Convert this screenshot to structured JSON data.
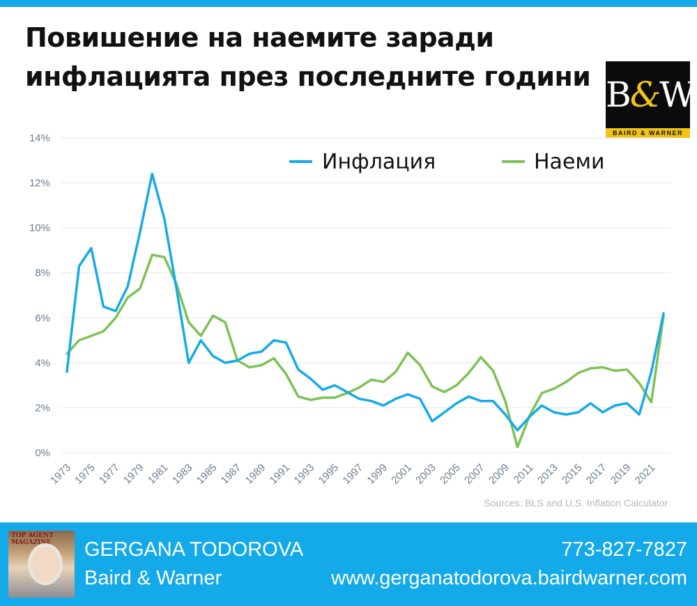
{
  "title_line1": "Повишение на наемите заради",
  "title_line2": "инфлацията през последните години",
  "logo": {
    "mark": "B&W",
    "band": "BAIRD & WARNER"
  },
  "footer": {
    "name": "GERGANA TODOROVA",
    "company": "Baird & Warner",
    "phone": "773-827-7827",
    "website": "www.gerganatodorova.bairdwarner.com",
    "photo_badge": "TOP AGENT MAGAZINE"
  },
  "colors": {
    "accent": "#14a9e8",
    "inflation": "#16aae8",
    "rents": "#7dc255",
    "logo_yellow": "#f2c417"
  },
  "chart_data": {
    "type": "line",
    "x": [
      1973,
      1974,
      1975,
      1976,
      1977,
      1978,
      1979,
      1980,
      1981,
      1982,
      1983,
      1984,
      1985,
      1986,
      1987,
      1988,
      1989,
      1990,
      1991,
      1992,
      1993,
      1994,
      1995,
      1996,
      1997,
      1998,
      1999,
      2000,
      2001,
      2002,
      2003,
      2004,
      2005,
      2006,
      2007,
      2008,
      2009,
      2010,
      2011,
      2012,
      2013,
      2014,
      2015,
      2016,
      2017,
      2018,
      2019,
      2020,
      2021,
      2022
    ],
    "x_tick_labels": [
      "1973",
      "1975",
      "1977",
      "1979",
      "1981",
      "1983",
      "1985",
      "1987",
      "1989",
      "1991",
      "1993",
      "1995",
      "1997",
      "1999",
      "2001",
      "2003",
      "2005",
      "2007",
      "2009",
      "2011",
      "2013",
      "2015",
      "2017",
      "2019",
      "2021"
    ],
    "y_tick_labels": [
      "0%",
      "2%",
      "4%",
      "6%",
      "8%",
      "10%",
      "12%",
      "14%"
    ],
    "ylim": [
      0,
      14
    ],
    "grid": true,
    "legend_position": "top",
    "series": [
      {
        "name": "Инфлация",
        "values": [
          3.6,
          8.3,
          9.1,
          6.5,
          6.3,
          7.4,
          9.8,
          12.4,
          10.4,
          7.3,
          4.0,
          5.0,
          4.3,
          4.0,
          4.1,
          4.4,
          4.5,
          5.0,
          4.9,
          3.7,
          3.3,
          2.8,
          3.0,
          2.7,
          2.4,
          2.3,
          2.1,
          2.4,
          2.6,
          2.4,
          1.4,
          1.8,
          2.2,
          2.5,
          2.3,
          2.3,
          1.7,
          1.0,
          1.6,
          2.1,
          1.8,
          1.7,
          1.8,
          2.2,
          1.8,
          2.1,
          2.2,
          1.7,
          3.6,
          6.2
        ]
      },
      {
        "name": "Наеми",
        "values": [
          4.4,
          5.0,
          5.2,
          5.4,
          6.0,
          6.9,
          7.3,
          8.8,
          8.7,
          7.5,
          5.8,
          5.2,
          6.1,
          5.8,
          4.1,
          3.8,
          3.9,
          4.2,
          3.5,
          2.5,
          2.35,
          2.45,
          2.45,
          2.65,
          2.9,
          3.25,
          3.15,
          3.6,
          4.45,
          3.9,
          2.95,
          2.7,
          3.0,
          3.55,
          4.25,
          3.65,
          2.3,
          0.25,
          1.65,
          2.65,
          2.85,
          3.15,
          3.55,
          3.75,
          3.8,
          3.65,
          3.7,
          3.1,
          2.25,
          6.1
        ]
      }
    ],
    "source": "Sources: BLS and U.S. Inflation Calculator"
  }
}
